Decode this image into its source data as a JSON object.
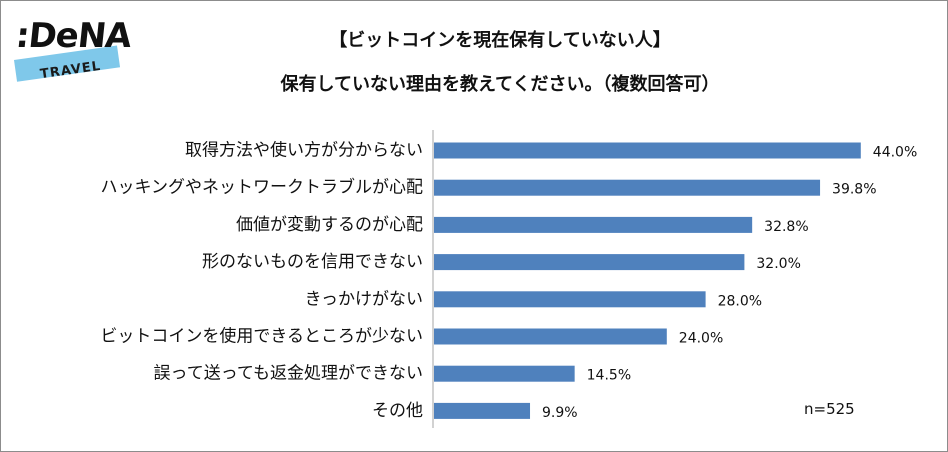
{
  "logo": {
    "brand": ":DeNA",
    "sub": "TRAVEL"
  },
  "header": {
    "title_line1": "【ビットコインを現在保有していない人】",
    "title_line2": "保有していない理由を教えてください。（複数回答可）"
  },
  "sample_note": "n=525",
  "colors": {
    "bar": "#4f81bd",
    "axis": "#a6a6a6"
  },
  "chart_data": {
    "type": "bar",
    "orientation": "horizontal",
    "categories": [
      "取得方法や使い方が分からない",
      "ハッキングやネットワークトラブルが心配",
      "価値が変動するのが心配",
      "形のないものを信用できない",
      "きっかけがない",
      "ビットコインを使用できるところが少ない",
      "誤って送っても返金処理ができない",
      "その他"
    ],
    "values": [
      44.0,
      39.8,
      32.8,
      32.0,
      28.0,
      24.0,
      14.5,
      9.9
    ],
    "value_labels": [
      "44.0%",
      "39.8%",
      "32.8%",
      "32.0%",
      "28.0%",
      "24.0%",
      "14.5%",
      "9.9%"
    ],
    "unit": "%",
    "xlim": [
      0,
      50
    ],
    "grid": false,
    "legend": "none"
  }
}
